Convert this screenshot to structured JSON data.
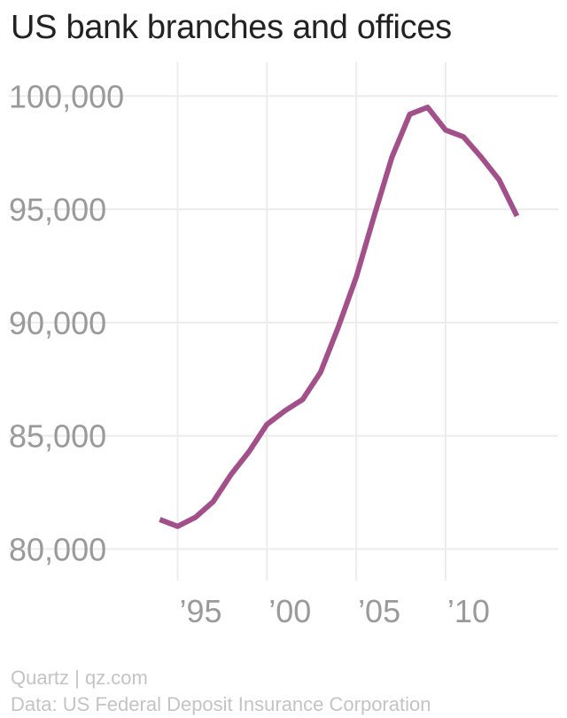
{
  "chart_data": {
    "type": "line",
    "title": "US bank branches and offices",
    "xlabel": "",
    "ylabel": "",
    "x": [
      1994,
      1995,
      1996,
      1997,
      1998,
      1999,
      2000,
      2001,
      2002,
      2003,
      2004,
      2005,
      2006,
      2007,
      2008,
      2009,
      2010,
      2011,
      2012,
      2013,
      2014
    ],
    "series": [
      {
        "values": [
          81300,
          81000,
          81400,
          82100,
          83300,
          84300,
          85500,
          86100,
          86600,
          87800,
          89800,
          92000,
          94700,
          97300,
          99200,
          99500,
          98500,
          98200,
          97300,
          96300,
          94700
        ]
      }
    ],
    "xlim": [
      1992,
      2016.8
    ],
    "ylim": [
      78800,
      101500
    ],
    "y_ticks": [
      {
        "value": 80000,
        "label": "80,000"
      },
      {
        "value": 85000,
        "label": "85,000"
      },
      {
        "value": 90000,
        "label": "90,000"
      },
      {
        "value": 95000,
        "label": "95,000"
      },
      {
        "value": 100000,
        "label": "100,000"
      }
    ],
    "x_ticks": [
      {
        "value": 1995,
        "label": "’95"
      },
      {
        "value": 2000,
        "label": "’00"
      },
      {
        "value": 2005,
        "label": "’05"
      },
      {
        "value": 2010,
        "label": "’10"
      }
    ],
    "grid": true,
    "line_color": "#a3508a",
    "grid_color": "#ececec"
  },
  "footer": {
    "source_line1": "Quartz | qz.com",
    "source_line2": "Data: US Federal Deposit Insurance Corporation"
  }
}
